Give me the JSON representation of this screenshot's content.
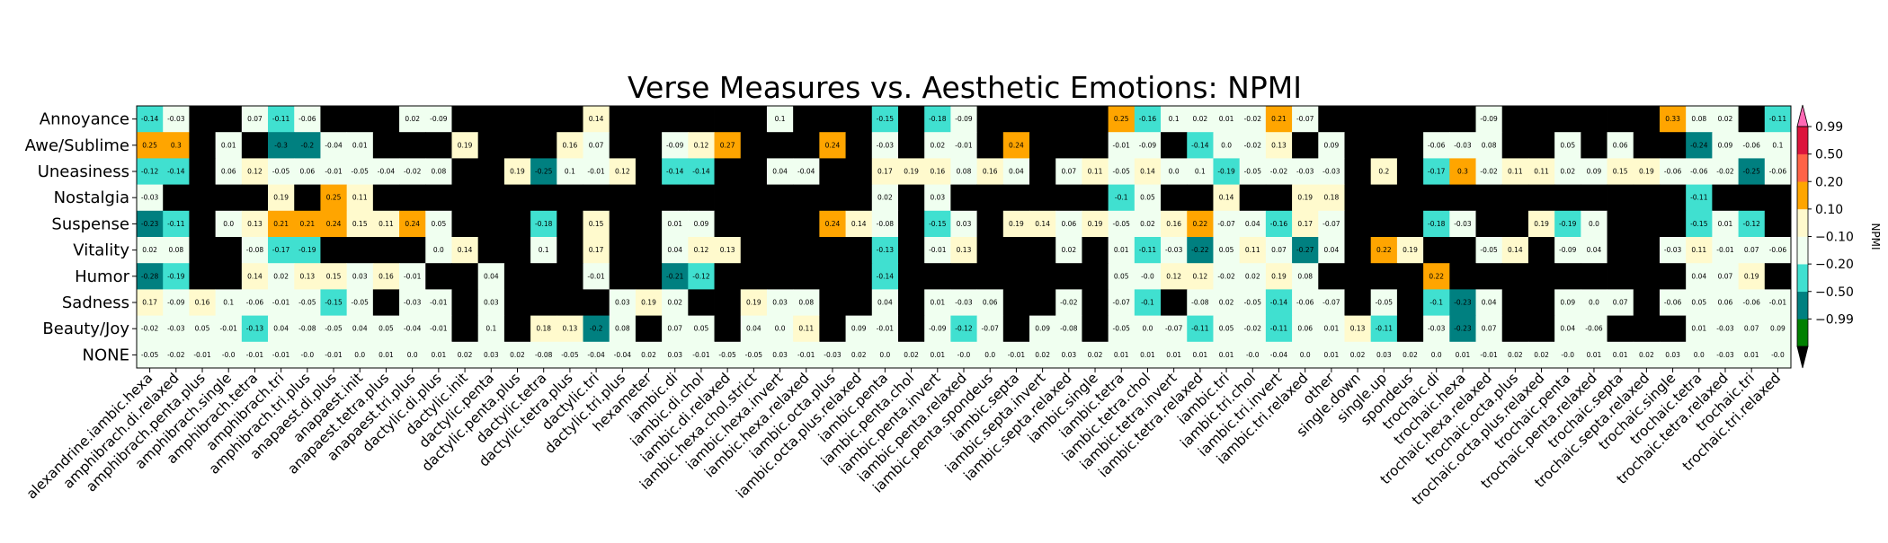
{
  "chart_data": {
    "type": "heatmap",
    "title": "Verse Measures vs. Aesthetic Emotions: NPMI",
    "xlabel": "",
    "ylabel": "",
    "rows": [
      "Annoyance",
      "Awe/Sublime",
      "Uneasiness",
      "Nostalgia",
      "Suspense",
      "Vitality",
      "Humor",
      "Sadness",
      "Beauty/Joy",
      "NONE"
    ],
    "columns": [
      "alexandrine.iambic.hexa",
      "amphibrach.di.relaxed",
      "amphibrach.penta.plus",
      "amphibrach.single",
      "amphibrach.tetra",
      "amphibrach.tri",
      "amphibrach.tri.plus",
      "anapaest.di.plus",
      "anapaest.init",
      "anapaest.tetra.plus",
      "anapaest.tri.plus",
      "dactylic.di.plus",
      "dactylic.init",
      "dactylic.penta",
      "dactylic.penta.plus",
      "dactylic.tetra",
      "dactylic.tetra.plus",
      "dactylic.tri",
      "dactylic.tri.plus",
      "hexameter",
      "iambic.di",
      "iambic.di.chol",
      "iambic.di.relaxed",
      "iambic.hexa.chol.strict",
      "iambic.hexa.invert",
      "iambic.hexa.relaxed",
      "iambic.octa.plus",
      "iambic.octa.plus.relaxed",
      "iambic.penta",
      "iambic.penta.chol",
      "iambic.penta.invert",
      "iambic.penta.relaxed",
      "iambic.penta.spondeus",
      "iambic.septa",
      "iambic.septa.invert",
      "iambic.septa.relaxed",
      "iambic.single",
      "iambic.tetra",
      "iambic.tetra.chol",
      "iambic.tetra.invert",
      "iambic.tetra.relaxed",
      "iambic.tri",
      "iambic.tri.chol",
      "iambic.tri.invert",
      "iambic.tri.relaxed",
      "other",
      "single.down",
      "single.up",
      "spondeus",
      "trochaic.di",
      "trochaic.hexa",
      "trochaic.hexa.relaxed",
      "trochaic.octa.plus",
      "trochaic.octa.plus.relaxed",
      "trochaic.penta",
      "trochaic.penta.relaxed",
      "trochaic.septa",
      "trochaic.septa.relaxed",
      "trochaic.single",
      "trochaic.tetra",
      "trochaic.tetra.relaxed",
      "trochaic.tri",
      "trochaic.tri.relaxed"
    ],
    "values": [
      [
        -0.14,
        -0.03,
        null,
        null,
        0.07,
        -0.11,
        -0.06,
        null,
        null,
        null,
        0.02,
        -0.09,
        null,
        null,
        null,
        null,
        null,
        0.14,
        null,
        null,
        null,
        null,
        null,
        null,
        0.1,
        null,
        null,
        null,
        -0.15,
        null,
        -0.18,
        -0.09,
        null,
        null,
        null,
        null,
        null,
        0.25,
        -0.16,
        0.1,
        0.02,
        0.01,
        -0.02,
        0.21,
        -0.07,
        null,
        null,
        null,
        null,
        null,
        null,
        -0.09,
        null,
        null,
        null,
        null,
        null,
        null,
        0.33,
        0.08,
        0.02,
        null,
        -0.11
      ],
      [
        0.25,
        0.3,
        null,
        0.01,
        null,
        -0.3,
        -0.2,
        -0.04,
        0.01,
        null,
        null,
        null,
        0.19,
        null,
        null,
        null,
        0.16,
        0.07,
        null,
        null,
        -0.09,
        0.12,
        0.27,
        null,
        null,
        null,
        0.24,
        null,
        -0.03,
        null,
        0.02,
        -0.01,
        null,
        0.24,
        null,
        null,
        null,
        -0.01,
        -0.09,
        null,
        -0.14,
        0.0,
        -0.02,
        0.13,
        null,
        0.09,
        null,
        null,
        null,
        -0.06,
        -0.03,
        0.08,
        null,
        null,
        0.05,
        null,
        0.06,
        null,
        null,
        -0.24,
        0.09,
        -0.06,
        0.1
      ],
      [
        -0.12,
        -0.14,
        null,
        0.06,
        0.12,
        -0.05,
        0.06,
        -0.01,
        -0.05,
        -0.04,
        -0.02,
        0.08,
        null,
        null,
        0.19,
        -0.25,
        0.1,
        -0.01,
        0.12,
        null,
        -0.14,
        -0.14,
        null,
        null,
        0.04,
        -0.04,
        null,
        null,
        0.17,
        0.19,
        0.16,
        0.08,
        0.16,
        0.04,
        null,
        0.07,
        0.11,
        -0.05,
        0.14,
        0.0,
        0.1,
        -0.19,
        -0.05,
        -0.02,
        -0.03,
        -0.03,
        null,
        0.2,
        null,
        -0.17,
        0.3,
        -0.02,
        0.11,
        0.11,
        0.02,
        0.09,
        0.15,
        0.19,
        -0.06,
        -0.06,
        -0.02,
        -0.25,
        -0.06
      ],
      [
        -0.03,
        null,
        null,
        null,
        null,
        0.19,
        null,
        0.25,
        0.11,
        null,
        null,
        null,
        null,
        null,
        null,
        null,
        null,
        null,
        null,
        null,
        null,
        null,
        null,
        null,
        null,
        null,
        null,
        null,
        0.02,
        null,
        0.03,
        null,
        null,
        null,
        null,
        null,
        null,
        -0.1,
        0.05,
        null,
        null,
        0.14,
        null,
        null,
        0.19,
        0.18,
        null,
        null,
        null,
        null,
        null,
        null,
        null,
        null,
        null,
        null,
        null,
        null,
        null,
        -0.11,
        null,
        null,
        null
      ],
      [
        -0.23,
        -0.11,
        null,
        0.0,
        0.13,
        0.21,
        0.21,
        0.24,
        0.15,
        0.11,
        0.24,
        0.05,
        null,
        null,
        null,
        -0.18,
        null,
        0.15,
        null,
        null,
        0.01,
        0.09,
        null,
        null,
        null,
        null,
        0.24,
        0.14,
        -0.08,
        null,
        -0.15,
        0.03,
        null,
        0.19,
        0.14,
        0.06,
        0.19,
        -0.05,
        0.02,
        0.16,
        0.22,
        -0.07,
        0.04,
        -0.16,
        0.17,
        -0.07,
        null,
        null,
        null,
        -0.18,
        -0.03,
        null,
        null,
        0.19,
        -0.19,
        0.0,
        null,
        null,
        null,
        -0.15,
        0.01,
        -0.12,
        null
      ],
      [
        0.02,
        0.08,
        null,
        null,
        -0.08,
        -0.17,
        -0.19,
        null,
        null,
        null,
        null,
        0.0,
        0.14,
        null,
        null,
        0.1,
        null,
        0.17,
        null,
        null,
        0.04,
        0.12,
        0.13,
        null,
        null,
        null,
        null,
        null,
        -0.13,
        null,
        -0.01,
        0.13,
        null,
        null,
        null,
        0.02,
        null,
        0.01,
        -0.11,
        -0.03,
        -0.22,
        0.05,
        0.11,
        0.07,
        -0.27,
        0.04,
        null,
        0.22,
        0.19,
        null,
        null,
        -0.05,
        0.14,
        null,
        -0.09,
        0.04,
        null,
        null,
        -0.03,
        0.11,
        -0.01,
        0.07,
        -0.06
      ],
      [
        -0.28,
        -0.19,
        null,
        null,
        0.14,
        0.02,
        0.13,
        0.15,
        0.03,
        0.16,
        -0.01,
        null,
        null,
        0.04,
        null,
        null,
        null,
        -0.01,
        null,
        null,
        -0.21,
        -0.12,
        null,
        null,
        null,
        null,
        null,
        null,
        -0.14,
        null,
        null,
        null,
        null,
        null,
        null,
        null,
        null,
        0.05,
        -0.0,
        0.12,
        0.12,
        -0.02,
        0.02,
        0.19,
        0.08,
        null,
        null,
        null,
        null,
        0.22,
        null,
        null,
        null,
        null,
        null,
        null,
        null,
        null,
        null,
        0.04,
        0.07,
        0.19,
        null
      ],
      [
        0.17,
        -0.09,
        0.16,
        0.1,
        -0.06,
        -0.01,
        -0.05,
        -0.15,
        -0.05,
        null,
        -0.03,
        -0.01,
        null,
        0.03,
        null,
        null,
        null,
        null,
        0.03,
        0.19,
        0.02,
        null,
        null,
        0.19,
        0.03,
        0.08,
        null,
        null,
        0.04,
        null,
        0.01,
        -0.03,
        0.06,
        null,
        null,
        -0.02,
        null,
        -0.07,
        -0.1,
        null,
        -0.08,
        0.02,
        -0.05,
        -0.14,
        -0.06,
        -0.07,
        null,
        -0.05,
        null,
        -0.1,
        -0.23,
        0.04,
        null,
        null,
        0.09,
        0.0,
        0.07,
        null,
        -0.06,
        0.05,
        0.06,
        -0.06,
        -0.01
      ],
      [
        -0.02,
        -0.03,
        0.05,
        -0.01,
        -0.13,
        0.04,
        -0.08,
        -0.05,
        0.04,
        0.05,
        -0.04,
        -0.01,
        null,
        0.1,
        null,
        0.18,
        0.13,
        -0.2,
        0.08,
        null,
        0.07,
        0.05,
        null,
        0.04,
        0.0,
        0.11,
        null,
        0.09,
        -0.01,
        null,
        -0.09,
        -0.12,
        -0.07,
        null,
        0.09,
        -0.08,
        null,
        -0.05,
        0.0,
        -0.07,
        -0.11,
        0.05,
        -0.02,
        -0.11,
        0.06,
        0.01,
        0.13,
        -0.11,
        null,
        -0.03,
        -0.23,
        0.07,
        null,
        null,
        0.04,
        -0.06,
        null,
        null,
        null,
        0.01,
        -0.03,
        0.07,
        0.09
      ],
      [
        -0.05,
        -0.02,
        -0.01,
        -0.0,
        -0.01,
        -0.01,
        -0.0,
        -0.01,
        0.0,
        0.01,
        0.0,
        0.01,
        0.02,
        0.03,
        0.02,
        -0.08,
        -0.05,
        -0.04,
        -0.04,
        0.02,
        0.03,
        -0.01,
        -0.05,
        -0.05,
        0.03,
        -0.01,
        -0.03,
        0.02,
        0.0,
        0.02,
        0.01,
        -0.0,
        0.0,
        -0.01,
        0.02,
        0.03,
        0.02,
        0.01,
        0.01,
        0.01,
        0.01,
        0.01,
        -0.0,
        -0.04,
        0.0,
        0.01,
        0.02,
        0.03,
        0.02,
        0.0,
        0.01,
        -0.01,
        0.02,
        0.02,
        -0.0,
        0.01,
        0.01,
        0.02,
        0.03,
        0.0,
        -0.03,
        0.01,
        -0.0
      ]
    ],
    "colorbar": {
      "label": "NPMI",
      "ticks": [
        "0.99",
        "0.50",
        "0.20",
        "0.10",
        "−0.10",
        "−0.20",
        "−0.50",
        "−0.99"
      ],
      "bounds": [
        -0.99,
        -0.5,
        -0.2,
        -0.1,
        0.1,
        0.2,
        0.5,
        0.99
      ],
      "colors": [
        "#008000",
        "#008080",
        "#40e0d0",
        "#f0fff0",
        "#fffacd",
        "#ffa500",
        "#ff6347",
        "#dc143c"
      ],
      "over_color": "#ff69b4",
      "under_color": "#000000",
      "missing_color": "#000000"
    },
    "legend": "right",
    "grid": false
  }
}
